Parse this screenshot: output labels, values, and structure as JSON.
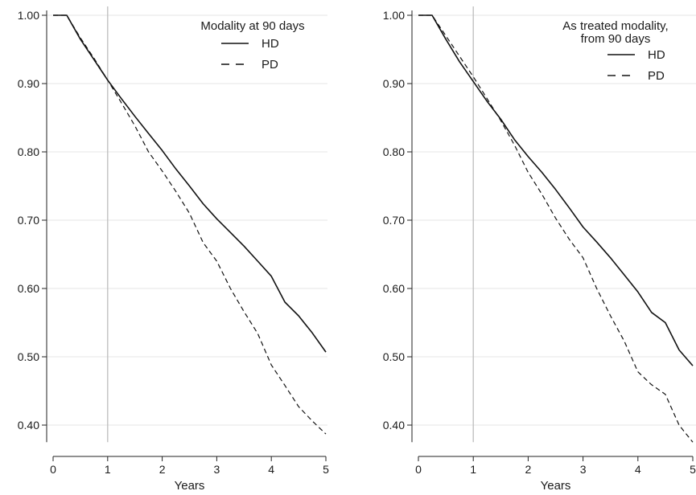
{
  "chart_data": [
    {
      "type": "line",
      "title": "",
      "xlabel": "Years",
      "ylabel": "",
      "xlim": [
        0,
        5
      ],
      "ylim": [
        0.375,
        1.0
      ],
      "xticks": [
        "0",
        "1",
        "2",
        "3",
        "4",
        "5"
      ],
      "yticks": [
        "1.00",
        "0.90",
        "0.80",
        "0.70",
        "0.60",
        "0.50",
        "0.40"
      ],
      "grid": "horizontal",
      "reference_line_x": 1,
      "legend": {
        "title_lines": [
          "Modality at 90 days"
        ],
        "placement": "top-right"
      },
      "series": [
        {
          "name": "HD",
          "style": "solid",
          "x": [
            0,
            0.25,
            0.5,
            0.75,
            1,
            1.25,
            1.5,
            1.75,
            2,
            2.25,
            2.5,
            2.75,
            3,
            3.25,
            3.5,
            3.75,
            4,
            4.25,
            4.5,
            4.75,
            5
          ],
          "y": [
            1.0,
            1.0,
            0.965,
            0.935,
            0.905,
            0.878,
            0.852,
            0.827,
            0.802,
            0.775,
            0.75,
            0.724,
            0.702,
            0.682,
            0.662,
            0.64,
            0.618,
            0.58,
            0.56,
            0.535,
            0.507
          ]
        },
        {
          "name": "PD",
          "style": "dashed",
          "x": [
            0,
            0.25,
            0.5,
            0.75,
            1,
            1.25,
            1.5,
            1.75,
            2,
            2.25,
            2.5,
            2.75,
            3,
            3.25,
            3.5,
            3.75,
            4,
            4.25,
            4.5,
            4.75,
            5
          ],
          "y": [
            1.0,
            1.0,
            0.967,
            0.937,
            0.905,
            0.872,
            0.838,
            0.8,
            0.772,
            0.742,
            0.71,
            0.667,
            0.64,
            0.6,
            0.566,
            0.534,
            0.488,
            0.458,
            0.427,
            0.406,
            0.387
          ]
        }
      ]
    },
    {
      "type": "line",
      "title": "",
      "xlabel": "Years",
      "ylabel": "",
      "xlim": [
        0,
        5
      ],
      "ylim": [
        0.375,
        1.0
      ],
      "xticks": [
        "0",
        "1",
        "2",
        "3",
        "4",
        "5"
      ],
      "yticks": [
        "1.00",
        "0.90",
        "0.80",
        "0.70",
        "0.60",
        "0.50",
        "0.40"
      ],
      "grid": "horizontal",
      "reference_line_x": 1,
      "legend": {
        "title_lines": [
          "As treated modality,",
          "from 90 days"
        ],
        "placement": "top-right"
      },
      "series": [
        {
          "name": "HD",
          "style": "solid",
          "x": [
            0,
            0.25,
            0.5,
            0.75,
            1,
            1.25,
            1.5,
            1.75,
            2,
            2.25,
            2.5,
            2.75,
            3,
            3.25,
            3.5,
            3.75,
            4,
            4.25,
            4.5,
            4.75,
            5
          ],
          "y": [
            1.0,
            1.0,
            0.965,
            0.932,
            0.903,
            0.874,
            0.848,
            0.818,
            0.793,
            0.77,
            0.745,
            0.718,
            0.69,
            0.668,
            0.645,
            0.62,
            0.595,
            0.565,
            0.55,
            0.51,
            0.487
          ]
        },
        {
          "name": "PD",
          "style": "dashed",
          "x": [
            0,
            0.25,
            0.5,
            0.75,
            1,
            1.25,
            1.5,
            1.75,
            2,
            2.25,
            2.5,
            2.75,
            3,
            3.25,
            3.5,
            3.75,
            4,
            4.25,
            4.5,
            4.75,
            5
          ],
          "y": [
            1.0,
            1.0,
            0.97,
            0.94,
            0.91,
            0.878,
            0.846,
            0.81,
            0.77,
            0.738,
            0.703,
            0.672,
            0.645,
            0.6,
            0.56,
            0.523,
            0.478,
            0.459,
            0.445,
            0.4,
            0.375
          ]
        }
      ]
    }
  ]
}
